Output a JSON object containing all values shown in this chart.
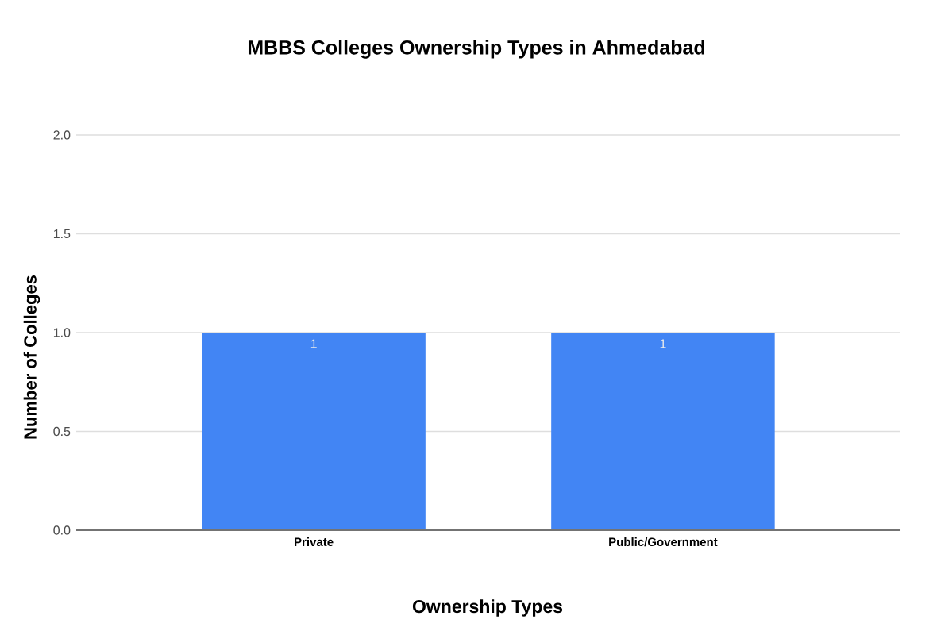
{
  "chart_data": {
    "type": "bar",
    "title": "MBBS Colleges Ownership Types in Ahmedabad",
    "xlabel": "Ownership Types",
    "ylabel": "Number of Colleges",
    "categories": [
      "Private",
      "Public/Government"
    ],
    "values": [
      1,
      1
    ],
    "color": "#4285f4",
    "ylim": [
      0,
      2
    ],
    "yticks": [
      {
        "value": 0,
        "label": "0.0"
      },
      0.5,
      {
        "value": 1,
        "label": "1.0"
      },
      1.5,
      {
        "value": 2,
        "label": "2.0"
      }
    ],
    "grid": "y",
    "data_labels": true
  }
}
